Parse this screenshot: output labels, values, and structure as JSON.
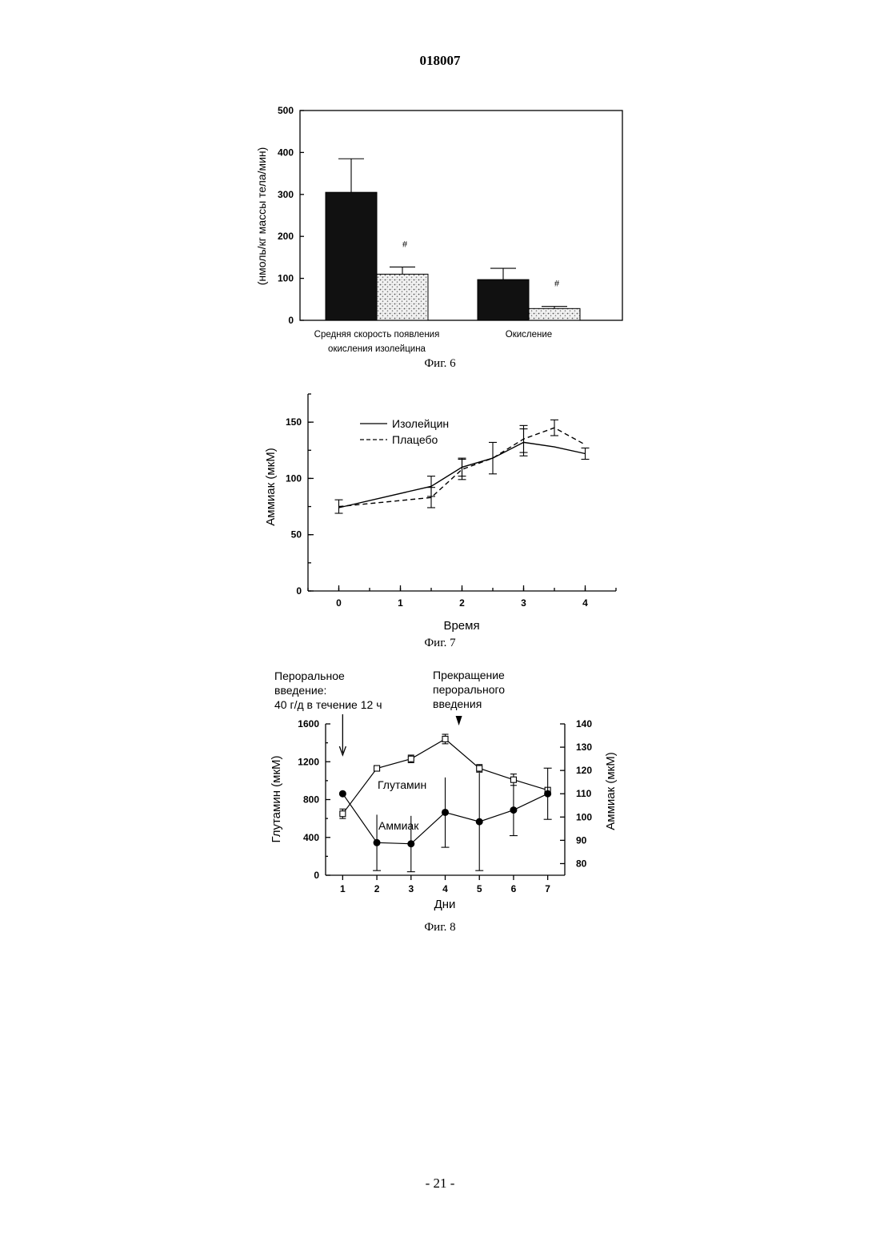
{
  "page": {
    "doc_number": "018007",
    "page_number": "- 21 -"
  },
  "chart_data": [
    {
      "type": "bar",
      "caption": "Фиг. 6",
      "ylabel": "(нмоль/кг массы тела/мин)",
      "ylim": [
        0,
        500
      ],
      "yticks": [
        "0",
        "100",
        "200",
        "300",
        "400",
        "500"
      ],
      "categories": [
        {
          "line1": "Средняя скорость появления",
          "line2": "окисления изолейцина"
        },
        {
          "line1": "Окисление",
          "line2": ""
        }
      ],
      "series": [
        {
          "values": [
            305,
            97
          ],
          "errors": [
            80,
            27
          ],
          "fill": "#111111"
        },
        {
          "values": [
            110,
            28
          ],
          "errors": [
            17,
            5
          ],
          "fill": "stipple",
          "markers": [
            "#",
            "#"
          ]
        }
      ]
    },
    {
      "type": "line",
      "caption": "Фиг. 7",
      "xlabel": "Время",
      "ylabel": "Аммиак (мкМ)",
      "xlim": [
        -0.5,
        4.5
      ],
      "ylim": [
        0,
        175
      ],
      "xticks": [
        "0",
        "1",
        "2",
        "3",
        "4"
      ],
      "yticks": [
        "0",
        "50",
        "100",
        "150"
      ],
      "legend_position": "top-left",
      "series": [
        {
          "name": "Изолейцин",
          "style": "solid",
          "x": [
            0,
            1.5,
            2,
            2.5,
            3,
            3.5,
            4
          ],
          "y": [
            74,
            93,
            110,
            118,
            132,
            128,
            122
          ],
          "err": [
            0,
            9,
            8,
            0,
            12,
            0,
            5
          ]
        },
        {
          "name": "Плацебо",
          "style": "dashed",
          "x": [
            0,
            1.5,
            2,
            2.5,
            3,
            3.5,
            4
          ],
          "y": [
            75,
            83,
            108,
            118,
            135,
            145,
            130
          ],
          "err": [
            6,
            9,
            9,
            14,
            12,
            7,
            0
          ]
        }
      ]
    },
    {
      "type": "line",
      "caption": "Фиг. 8",
      "xlabel": "Дни",
      "ylabel_left": "Глутамин (мкМ)",
      "ylabel_right": "Аммиак (мкМ)",
      "xlim": [
        0.5,
        7.5
      ],
      "ylim_left": [
        0,
        1600
      ],
      "ylim_right": [
        75,
        140
      ],
      "xticks": [
        "1",
        "2",
        "3",
        "4",
        "5",
        "6",
        "7"
      ],
      "yticks_left": [
        "0",
        "400",
        "800",
        "1200",
        "1600"
      ],
      "yticks_right": [
        "80",
        "90",
        "100",
        "110",
        "120",
        "130",
        "140"
      ],
      "series": [
        {
          "name": "Глутамин",
          "axis": "left",
          "marker": "open-square",
          "x": [
            1,
            2,
            3,
            4,
            5,
            6,
            7
          ],
          "y": [
            650,
            1130,
            1230,
            1440,
            1130,
            1010,
            900
          ],
          "err": [
            50,
            25,
            40,
            50,
            40,
            60,
            0
          ]
        },
        {
          "name": "Аммиак",
          "axis": "right",
          "marker": "filled-circle",
          "x": [
            1,
            2,
            3,
            4,
            5,
            6,
            7
          ],
          "y": [
            110,
            89,
            88.5,
            102,
            98,
            103,
            110
          ],
          "err": [
            0,
            12,
            12,
            15,
            21,
            11,
            11
          ]
        }
      ],
      "annotations": {
        "start": {
          "lines": [
            "Пероральное",
            "введение:",
            "40 г/д в течение 12 ч"
          ],
          "x": 1
        },
        "stop": {
          "lines": [
            "Прекращение",
            "перорального",
            "введения"
          ],
          "x": 4.4
        }
      }
    }
  ]
}
